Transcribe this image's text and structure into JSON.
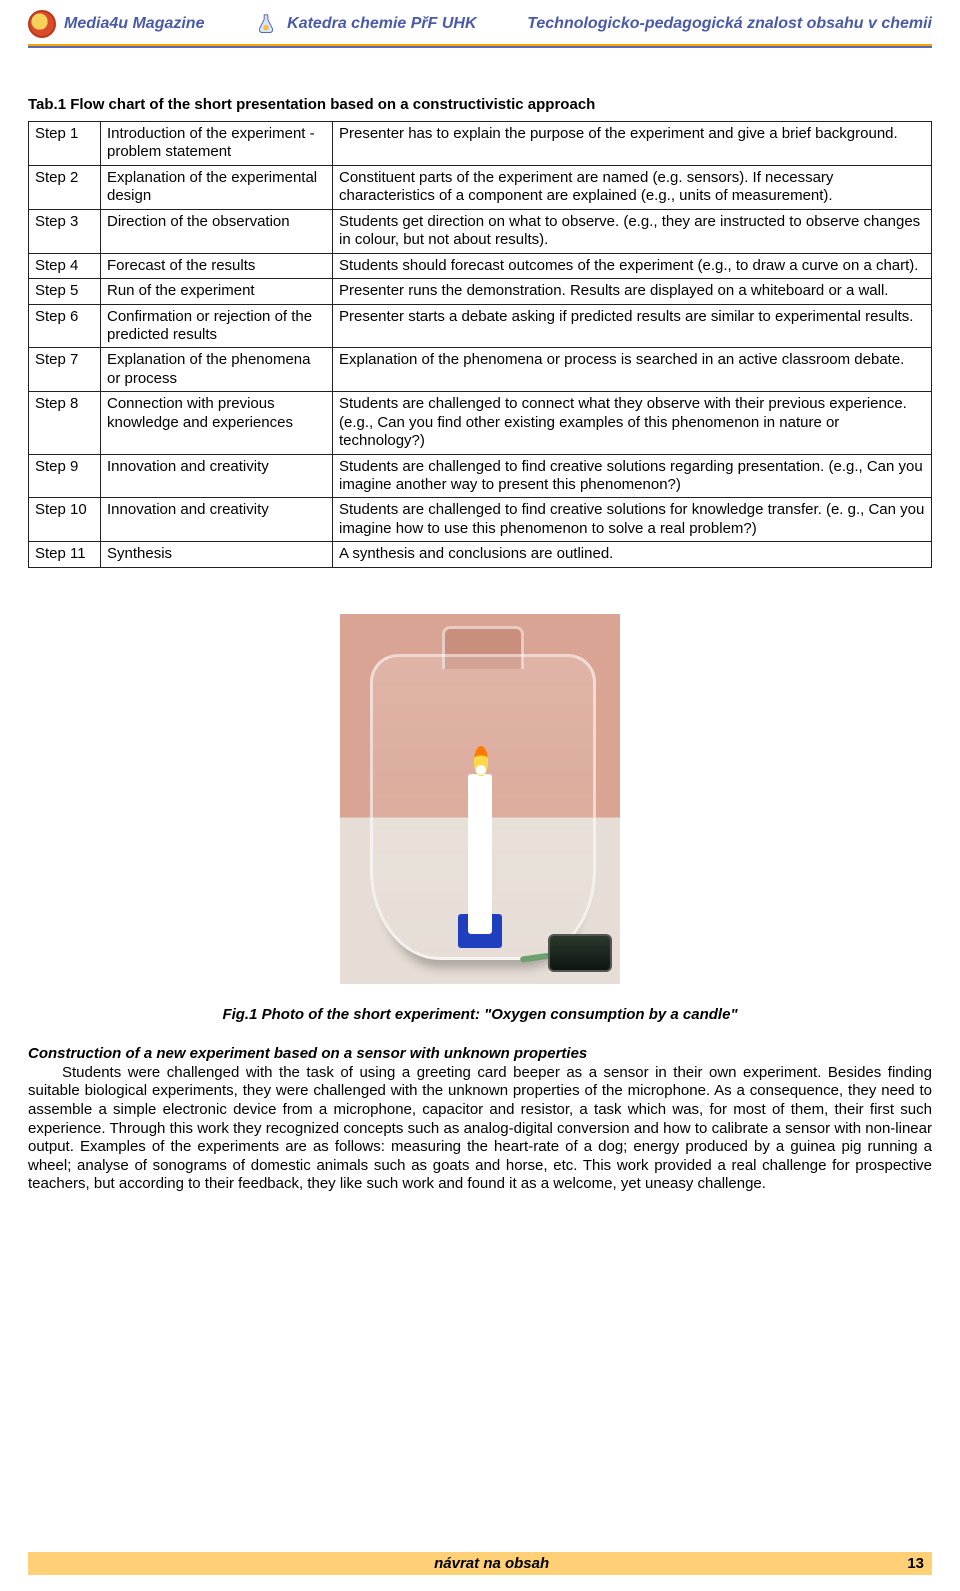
{
  "header": {
    "left": "Media4u Magazine",
    "mid": "Katedra chemie PřF UHK",
    "right": "Technologicko-pedagogická znalost obsahu v chemii"
  },
  "table": {
    "title": "Tab.1 Flow chart of the short presentation based on a constructivistic approach",
    "rows": [
      {
        "step": "Step 1",
        "mid": "Introduction of the experiment - problem statement",
        "desc": "Presenter has to explain the purpose of the experiment and give a brief background."
      },
      {
        "step": "Step 2",
        "mid": "Explanation of the experimental design",
        "desc": "Constituent parts of the experiment are named (e.g. sensors). If necessary characteristics of a component are explained (e.g., units of measurement)."
      },
      {
        "step": "Step 3",
        "mid": "Direction of the observation",
        "desc": "Students get direction on what to observe. (e.g., they are instructed to observe changes in colour, but not about results)."
      },
      {
        "step": "Step 4",
        "mid": "Forecast of the results",
        "desc": "Students should forecast outcomes of the experiment (e.g., to draw a curve on a chart)."
      },
      {
        "step": "Step 5",
        "mid": "Run of the experiment",
        "desc": "Presenter runs the demonstration. Results are displayed on a whiteboard or a wall."
      },
      {
        "step": "Step 6",
        "mid": "Confirmation or rejection of the predicted results",
        "desc": "Presenter starts a debate asking if predicted results are similar to experimental results."
      },
      {
        "step": "Step 7",
        "mid": "Explanation of the phenomena or process",
        "desc": "Explanation of the phenomena or process is searched in an active classroom debate."
      },
      {
        "step": "Step 8",
        "mid": "Connection with previous knowledge and experiences",
        "desc": "Students are challenged to connect what they observe with their previous experience. (e.g., Can you find other existing examples of this phenomenon in nature or technology?)"
      },
      {
        "step": "Step 9",
        "mid": "Innovation and creativity",
        "desc": "Students are challenged to find creative solutions regarding presentation. (e.g., Can you imagine another way to present this phenomenon?)"
      },
      {
        "step": "Step 10",
        "mid": "Innovation and creativity",
        "desc": "Students are challenged to find creative solutions for knowledge transfer. (e. g., Can you imagine how to use this phenomenon to solve a real problem?)"
      },
      {
        "step": "Step 11",
        "mid": "Synthesis",
        "desc": "A synthesis and conclusions are outlined."
      }
    ]
  },
  "figure": {
    "caption": "Fig.1 Photo of the short experiment: \"Oxygen consumption by a candle\"",
    "colors": {
      "wall": "#d9a493",
      "table": "#e6ded6",
      "candle": "#ffffff",
      "holder": "#1f3fbf",
      "flame_outer": "#ff7a00",
      "flame_inner": "#ffd84a",
      "sensor": "#1a241b",
      "tube": "#6da06e"
    }
  },
  "section": {
    "heading": "Construction of a new experiment based on a sensor with unknown properties",
    "text": "Students were challenged with the task of using a greeting card beeper as a sensor in their own experiment. Besides finding suitable biological experiments, they were challenged with the unknown properties of the microphone. As a consequence, they need to assemble a simple electronic device from a microphone, capacitor and resistor, a task which was, for most of them, their first such experience. Through this work they recognized concepts such as analog-digital conversion and how to calibrate a sensor with non-linear output. Examples of the experiments are as follows: measuring the heart-rate of a dog; energy produced by a guinea pig running a wheel; analyse of sonograms of domestic animals such as goats and horse, etc. This work provided a real challenge for prospective teachers, but according to their feedback, they like such work and found it as a welcome, yet uneasy challenge."
  },
  "footer": {
    "back": "návrat na obsah",
    "page": "13"
  },
  "palette": {
    "header_text": "#4a5aa8",
    "rule_top": "#f5a600",
    "rule_bottom": "#5a68b8",
    "footer_bg": "#ffd076",
    "table_border": "#222222",
    "body_text": "#000000"
  }
}
